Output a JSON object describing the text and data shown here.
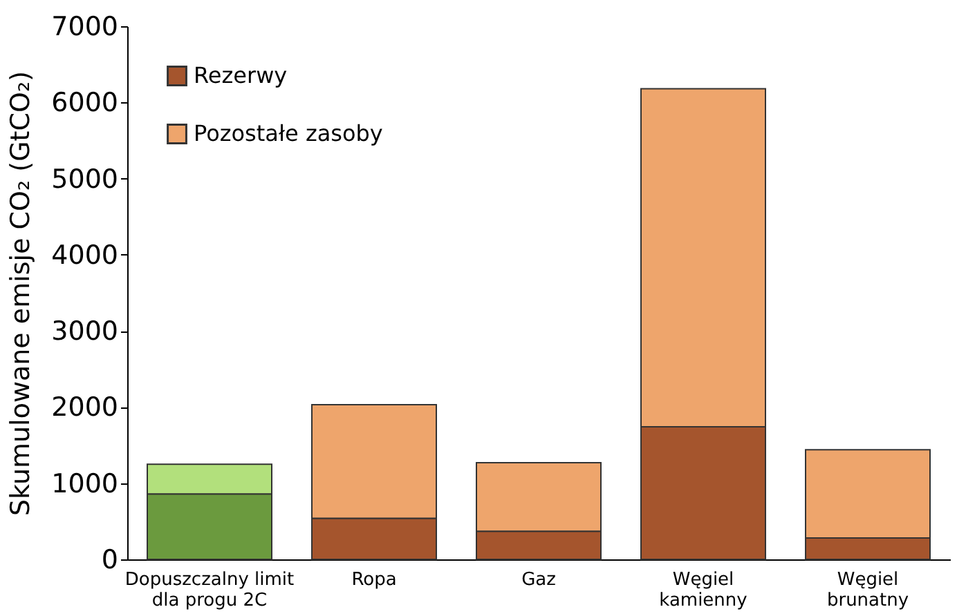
{
  "chart_data": {
    "type": "bar",
    "stacked": true,
    "ylabel": "Skumulowane emisje CO₂ (GtCO₂)",
    "categories": [
      "Dopuszczalny limit\ndla progu 2C",
      "Ropa",
      "Gaz",
      "Węgiel\nkamienny",
      "Węgiel\nbrunatny"
    ],
    "series": [
      {
        "name": "Rezerwy",
        "color": "#a5552d",
        "colors": [
          "#6b9a3e",
          "#a5552d",
          "#a5552d",
          "#a5552d",
          "#a5552d"
        ],
        "values": [
          860,
          540,
          370,
          1740,
          280
        ]
      },
      {
        "name": "Pozostałe zasoby",
        "color": "#eea56c",
        "colors": [
          "#b2e07c",
          "#eea56c",
          "#eea56c",
          "#eea56c",
          "#eea56c"
        ],
        "values": [
          390,
          1490,
          900,
          4440,
          1160
        ]
      }
    ],
    "ylim": [
      0,
      7000
    ],
    "yticks": [
      0,
      1000,
      2000,
      3000,
      4000,
      5000,
      6000,
      7000
    ],
    "grid": false,
    "legend": "top left"
  }
}
